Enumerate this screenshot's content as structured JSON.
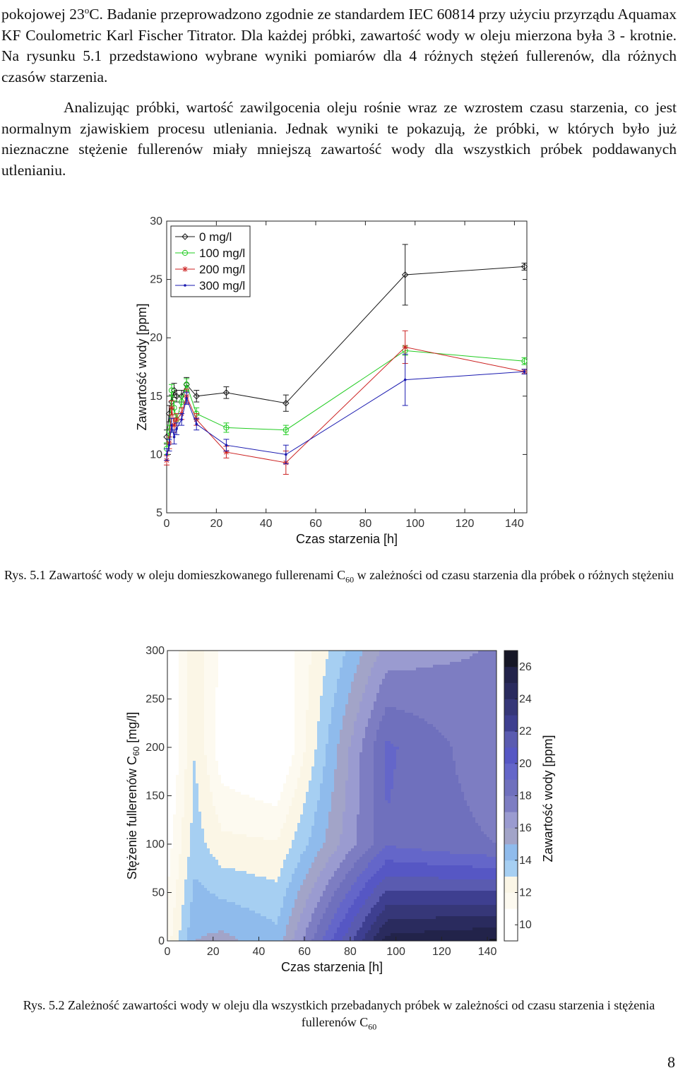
{
  "page": {
    "para1": {
      "pre": "pokojowej 23",
      "sup": "o",
      "post": "C. Badanie przeprowadzono zgodnie ze standardem IEC 60814 przy użyciu przyrządu Aquamax KF Coulometric Karl Fischer Titrator. Dla każdej próbki, zawartość wody w oleju mierzona była 3 - krotnie. Na rysunku 5.1 przedstawiono wybrane wyniki pomiarów dla 4 różnych stężeń fullerenów, dla różnych czasów starzenia."
    },
    "para2": "Analizując próbki, wartość zawilgocenia oleju rośnie wraz ze wzrostem czasu starzenia, co jest normalnym zjawiskiem procesu utleniania. Jednak wyniki te pokazują, że próbki, w których było już nieznaczne stężenie fullerenów miały mniejszą zawartość wody dla wszystkich próbek poddawanych utlenianiu.",
    "caption1": {
      "pre": "Rys. 5.1 Zawartość wody w oleju domieszkowanego fullerenami C",
      "sub": "60",
      "post": " w zależności od czasu starzenia dla próbek o różnych stężeniu"
    },
    "caption2": {
      "pre": "Rys. 5.2 Zależność zawartości wody w oleju dla wszystkich przebadanych próbek w zależności od czasu starzenia i stężenia fullerenów C",
      "sub": "60",
      "post": ""
    },
    "page_number": "8"
  },
  "chart_data": [
    {
      "type": "line",
      "title": "",
      "xlabel": "Czas starzenia [h]",
      "ylabel": "Zawartość wody [ppm]",
      "xlim": [
        0,
        145
      ],
      "ylim": [
        5,
        30
      ],
      "xticks": [
        0,
        20,
        40,
        60,
        80,
        100,
        120,
        140
      ],
      "yticks": [
        5,
        10,
        15,
        20,
        25,
        30
      ],
      "legend_position": "top-left",
      "series": [
        {
          "name": "0 mg/l",
          "color": "#1a1a1a",
          "marker": "diamond",
          "x": [
            0,
            1,
            2,
            3,
            4,
            6,
            8,
            12,
            24,
            48,
            96,
            144
          ],
          "y": [
            11.5,
            13.5,
            14.5,
            15.5,
            15.0,
            15.0,
            16.0,
            15.0,
            15.3,
            14.4,
            25.4,
            26.1
          ],
          "err": [
            0.6,
            0.7,
            0.6,
            0.6,
            0.5,
            0.5,
            0.6,
            0.5,
            0.5,
            0.7,
            2.6,
            0.3
          ]
        },
        {
          "name": "100 mg/l",
          "color": "#22cc22",
          "marker": "circle",
          "x": [
            0,
            1,
            2,
            3,
            4,
            6,
            8,
            12,
            24,
            48,
            96,
            144
          ],
          "y": [
            10.5,
            12.0,
            15.5,
            14.0,
            13.0,
            14.5,
            16.0,
            13.5,
            12.3,
            12.1,
            18.9,
            18.0
          ],
          "err": [
            0.5,
            0.5,
            0.5,
            0.6,
            0.5,
            0.5,
            0.5,
            0.5,
            0.4,
            0.4,
            0.4,
            0.3
          ]
        },
        {
          "name": "200 mg/l",
          "color": "#cc2222",
          "marker": "star",
          "x": [
            0,
            1,
            2,
            3,
            4,
            6,
            8,
            12,
            24,
            48,
            96,
            144
          ],
          "y": [
            9.5,
            11.0,
            14.0,
            12.5,
            13.0,
            13.5,
            15.0,
            13.0,
            10.2,
            9.3,
            19.2,
            17.1
          ],
          "err": [
            0.4,
            0.5,
            0.6,
            0.6,
            0.5,
            0.5,
            0.6,
            0.5,
            0.5,
            1.0,
            1.4,
            0.2
          ]
        },
        {
          "name": "300 mg/l",
          "color": "#1a1ab0",
          "marker": "point",
          "x": [
            0,
            1,
            2,
            3,
            4,
            6,
            8,
            12,
            24,
            48,
            96,
            144
          ],
          "y": [
            10.0,
            10.8,
            12.5,
            11.5,
            12.2,
            13.0,
            14.8,
            12.6,
            10.8,
            10.0,
            16.4,
            17.1
          ],
          "err": [
            0.5,
            0.5,
            0.6,
            0.6,
            0.5,
            0.5,
            0.5,
            0.5,
            0.5,
            0.8,
            2.2,
            0.2
          ]
        }
      ]
    },
    {
      "type": "heatmap",
      "title": "",
      "xlabel": "Czas starzenia [h]",
      "ylabel_pre": "Stężenie fullerenów C",
      "ylabel_sub": "60",
      "ylabel_post": " [mg/l]",
      "colorbar_label": "Zawartość wody [ppm]",
      "xlim": [
        0,
        144
      ],
      "ylim": [
        0,
        300
      ],
      "xticks": [
        0,
        20,
        40,
        60,
        80,
        100,
        120,
        140
      ],
      "yticks": [
        0,
        50,
        100,
        150,
        200,
        250,
        300
      ],
      "colorbar_ticks": [
        10,
        12,
        14,
        16,
        18,
        20,
        22,
        24,
        26
      ],
      "levels": [
        9,
        10,
        11,
        12,
        13,
        14,
        15,
        16,
        17,
        18,
        19,
        20,
        21,
        22,
        23,
        24,
        25,
        26,
        27
      ],
      "level_colors": [
        "#ffffff",
        "#ffffff",
        "#fdfaf0",
        "#fbf6e6",
        "#a6cff2",
        "#8fbbec",
        "#a2a4c8",
        "#9a9bd0",
        "#7d7dc2",
        "#6f70bd",
        "#6466c9",
        "#5657c4",
        "#5a5bb0",
        "#3e3f90",
        "#363778",
        "#2a2b5e",
        "#22234a",
        "#161726"
      ],
      "x": [
        0,
        12,
        24,
        48,
        72,
        96,
        120,
        144
      ],
      "y": [
        0,
        100,
        200,
        300
      ],
      "z": [
        [
          11.5,
          15.0,
          15.3,
          14.4,
          20.0,
          25.4,
          25.8,
          26.1
        ],
        [
          10.5,
          13.5,
          12.3,
          12.1,
          15.5,
          18.9,
          18.4,
          18.0
        ],
        [
          9.5,
          13.0,
          10.2,
          9.3,
          14.5,
          19.2,
          18.2,
          17.1
        ],
        [
          10.0,
          12.6,
          10.8,
          10.0,
          13.2,
          16.4,
          16.8,
          17.1
        ]
      ]
    }
  ]
}
